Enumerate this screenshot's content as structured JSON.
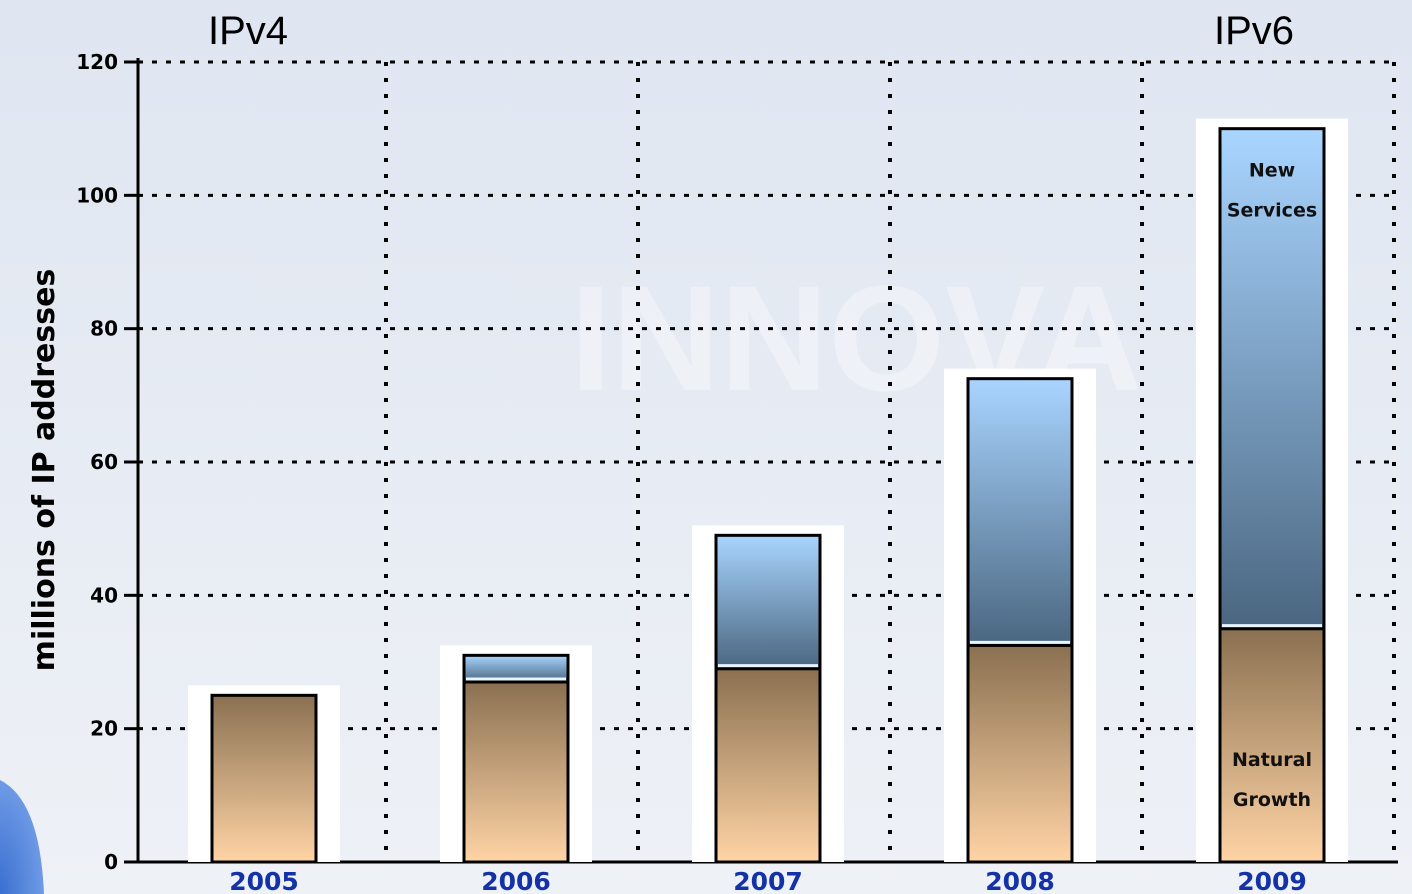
{
  "chart_data": {
    "type": "bar",
    "stacked": true,
    "categories": [
      "2005",
      "2006",
      "2007",
      "2008",
      "2009"
    ],
    "series": [
      {
        "name": "Natural Growth",
        "values": [
          25,
          27,
          29,
          32.5,
          35
        ],
        "color": "#ffd4a5",
        "color_dark": "#8a7051"
      },
      {
        "name": "New Services",
        "values": [
          0,
          4,
          20,
          40,
          75
        ],
        "color": "#a9d5ff",
        "color_dark": "#4a6680"
      }
    ],
    "title": "",
    "xlabel": "",
    "ylabel": "millions of IP addresses",
    "ylim": [
      0,
      120
    ],
    "yticks": [
      0,
      20,
      40,
      60,
      80,
      100,
      120
    ],
    "grid": true,
    "annotations": {
      "left_header": "IPv4",
      "right_header": "IPv6"
    },
    "segment_labels": {
      "new_services": [
        "New",
        "Services"
      ],
      "natural_growth": [
        "Natural",
        "Growth"
      ]
    }
  }
}
